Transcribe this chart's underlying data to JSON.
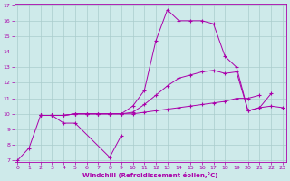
{
  "xlabel": "Windchill (Refroidissement éolien,°C)",
  "xlim": [
    0,
    23
  ],
  "ylim": [
    7,
    17
  ],
  "xticks": [
    0,
    1,
    2,
    3,
    4,
    5,
    6,
    7,
    8,
    9,
    10,
    11,
    12,
    13,
    14,
    15,
    16,
    17,
    18,
    19,
    20,
    21,
    22,
    23
  ],
  "yticks": [
    7,
    8,
    9,
    10,
    11,
    12,
    13,
    14,
    15,
    16,
    17
  ],
  "bg_color": "#ceeaea",
  "grid_color": "#aacccc",
  "line_color": "#aa00aa",
  "series": [
    {
      "x": [
        0,
        1,
        2,
        3,
        4,
        5,
        8,
        9
      ],
      "y": [
        7.0,
        7.8,
        9.9,
        9.9,
        9.4,
        9.4,
        7.2,
        8.6
      ]
    },
    {
      "x": [
        2,
        3,
        4,
        5,
        6,
        7,
        8,
        9,
        10,
        11,
        12,
        13,
        14,
        15,
        16,
        17,
        18,
        19,
        20,
        21
      ],
      "y": [
        9.9,
        9.9,
        9.9,
        10.0,
        10.0,
        10.0,
        10.0,
        10.0,
        10.0,
        10.1,
        10.2,
        10.3,
        10.4,
        10.5,
        10.6,
        10.7,
        10.8,
        11.0,
        11.0,
        11.2
      ]
    },
    {
      "x": [
        2,
        3,
        4,
        5,
        6,
        7,
        8,
        9,
        10,
        11,
        12,
        13,
        14,
        15,
        16,
        17,
        18,
        19,
        20,
        21,
        22,
        23
      ],
      "y": [
        9.9,
        9.9,
        9.9,
        10.0,
        10.0,
        10.0,
        10.0,
        10.0,
        10.1,
        10.6,
        11.2,
        11.8,
        12.3,
        12.5,
        12.7,
        12.8,
        12.6,
        12.7,
        10.2,
        10.4,
        10.5,
        10.4
      ]
    },
    {
      "x": [
        2,
        3,
        4,
        5,
        6,
        7,
        8,
        9,
        10,
        11,
        12,
        13,
        14,
        15,
        16,
        17,
        18,
        19,
        20,
        21,
        22
      ],
      "y": [
        9.9,
        9.9,
        9.9,
        10.0,
        10.0,
        10.0,
        10.0,
        10.0,
        10.5,
        11.5,
        14.7,
        16.7,
        16.0,
        16.0,
        16.0,
        15.8,
        13.7,
        13.0,
        10.2,
        10.4,
        11.3
      ]
    }
  ]
}
